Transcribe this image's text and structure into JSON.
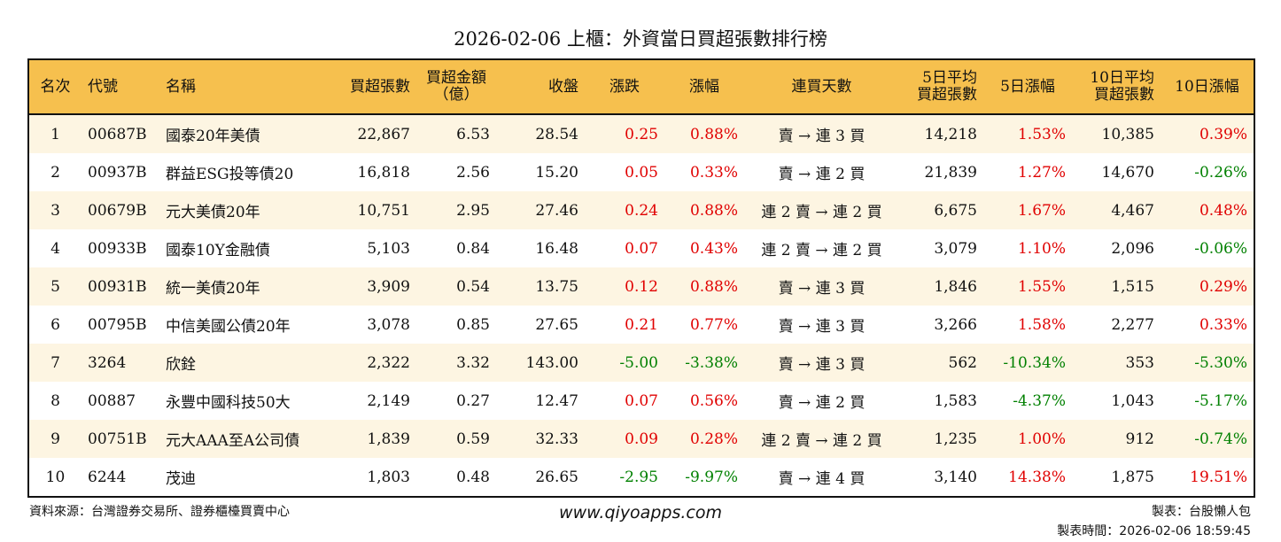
{
  "title": "2026-02-06 上櫃：外資當日買超張數排行榜",
  "columns": [
    "名次",
    "代號",
    "名稱",
    "買超張數",
    "買超金額\n（億）",
    "收盤",
    "漲跌",
    "漲幅",
    "連買天數",
    "5日平均\n買超張數",
    "5日漲幅",
    "10日平均\n買超張數",
    "10日漲幅"
  ],
  "rows": [
    [
      "1",
      "00687B",
      "國泰20年美債",
      "22,867",
      "6.53",
      "28.54",
      "0.25",
      "0.88%",
      "賣 → 連 3 買",
      "14,218",
      "1.53%",
      "10,385",
      "0.39%"
    ],
    [
      "2",
      "00937B",
      "群益ESG投等債20",
      "16,818",
      "2.56",
      "15.20",
      "0.05",
      "0.33%",
      "賣 → 連 2 買",
      "21,839",
      "1.27%",
      "14,670",
      "-0.26%"
    ],
    [
      "3",
      "00679B",
      "元大美債20年",
      "10,751",
      "2.95",
      "27.46",
      "0.24",
      "0.88%",
      "連 2 賣 → 連 2 買",
      "6,675",
      "1.67%",
      "4,467",
      "0.48%"
    ],
    [
      "4",
      "00933B",
      "國泰10Y金融債",
      "5,103",
      "0.84",
      "16.48",
      "0.07",
      "0.43%",
      "連 2 賣 → 連 2 買",
      "3,079",
      "1.10%",
      "2,096",
      "-0.06%"
    ],
    [
      "5",
      "00931B",
      "統一美債20年",
      "3,909",
      "0.54",
      "13.75",
      "0.12",
      "0.88%",
      "賣 → 連 3 買",
      "1,846",
      "1.55%",
      "1,515",
      "0.29%"
    ],
    [
      "6",
      "00795B",
      "中信美國公債20年",
      "3,078",
      "0.85",
      "27.65",
      "0.21",
      "0.77%",
      "賣 → 連 3 買",
      "3,266",
      "1.58%",
      "2,277",
      "0.33%"
    ],
    [
      "7",
      "3264",
      "欣銓",
      "2,322",
      "3.32",
      "143.00",
      "-5.00",
      "-3.38%",
      "賣 → 連 3 買",
      "562",
      "-10.34%",
      "353",
      "-5.30%"
    ],
    [
      "8",
      "00887",
      "永豐中國科技50大",
      "2,149",
      "0.27",
      "12.47",
      "0.07",
      "0.56%",
      "賣 → 連 2 買",
      "1,583",
      "-4.37%",
      "1,043",
      "-5.17%"
    ],
    [
      "9",
      "00751B",
      "元大AAA至A公司債",
      "1,839",
      "0.59",
      "32.33",
      "0.09",
      "0.28%",
      "連 2 賣 → 連 2 買",
      "1,235",
      "1.00%",
      "912",
      "-0.74%"
    ],
    [
      "10",
      "6244",
      "茂迪",
      "1,803",
      "0.48",
      "26.65",
      "-2.95",
      "-9.97%",
      "賣 → 連 4 買",
      "3,140",
      "14.38%",
      "1,875",
      "19.51%"
    ]
  ],
  "footer": {
    "source": "資料來源：台灣證券交易所、證券櫃檯買賣中心",
    "website": "www.qiyoapps.com",
    "maker": "製表：台股懶人包",
    "time": "製表時間：2026-02-06 18:59:45"
  },
  "colors": {
    "header": "#F6C04E",
    "stripe": "#FDF5E2",
    "up": "#e00000",
    "down": "#008000"
  }
}
